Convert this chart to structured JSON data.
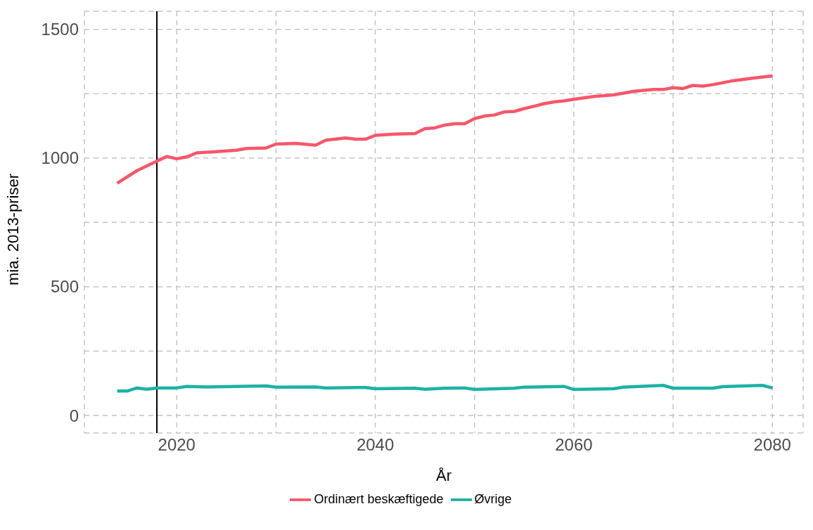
{
  "chart_data": {
    "type": "line",
    "xlabel": "År",
    "ylabel": "mia. 2013-priser",
    "xlim": [
      2010.7,
      2083.1
    ],
    "ylim": [
      -68,
      1570
    ],
    "xticks": [
      2020,
      {
        "value": 2030,
        "label": null
      },
      2040,
      {
        "value": 2050,
        "label": null
      },
      2060,
      {
        "value": 2070,
        "label": null
      },
      2080
    ],
    "yticks": [
      0,
      {
        "value": 250,
        "label": null
      },
      500,
      {
        "value": 750,
        "label": null
      },
      1000,
      {
        "value": 1250,
        "label": null
      },
      1500
    ],
    "grid": true,
    "legend": "bottom",
    "line_style": "solid",
    "marker": "none",
    "ref_lines": [
      {
        "axis": "x",
        "value": 2018,
        "color": "#000000"
      }
    ],
    "series": [
      {
        "name": "Ordinært beskæftigede",
        "color": "#f8566a",
        "x": [
          2014,
          2016,
          2018,
          2019,
          2020,
          2021,
          2022,
          2024,
          2026,
          2027,
          2029,
          2030,
          2032,
          2034,
          2035,
          2037,
          2038,
          2039,
          2040,
          2042,
          2044,
          2045,
          2046,
          2047,
          2048,
          2049,
          2050,
          2051,
          2052,
          2053,
          2054,
          2055,
          2056,
          2057,
          2058,
          2059,
          2060,
          2062,
          2064,
          2066,
          2068,
          2069,
          2070,
          2071,
          2072,
          2073,
          2074,
          2076,
          2078,
          2080
        ],
        "values": [
          902,
          951,
          988,
          1006,
          997,
          1004,
          1020,
          1025,
          1030,
          1037,
          1039,
          1054,
          1057,
          1050,
          1069,
          1078,
          1073,
          1073,
          1088,
          1093,
          1095,
          1114,
          1117,
          1128,
          1133,
          1133,
          1153,
          1163,
          1167,
          1179,
          1181,
          1192,
          1201,
          1211,
          1218,
          1222,
          1228,
          1239,
          1245,
          1259,
          1266,
          1266,
          1273,
          1270,
          1282,
          1279,
          1285,
          1300,
          1310,
          1319
        ]
      },
      {
        "name": "Øvrige",
        "color": "#1db2a5",
        "x": [
          2014,
          2015,
          2016,
          2017,
          2018,
          2020,
          2021,
          2023,
          2026,
          2029,
          2030,
          2034,
          2035,
          2039,
          2040,
          2044,
          2045,
          2047,
          2049,
          2050,
          2054,
          2055,
          2058,
          2059,
          2060,
          2064,
          2065,
          2069,
          2070,
          2074,
          2075,
          2079,
          2080
        ],
        "values": [
          95,
          95,
          107,
          102,
          107,
          107,
          113,
          111,
          113,
          115,
          110,
          111,
          107,
          109,
          104,
          106,
          102,
          106,
          107,
          101,
          106,
          110,
          112,
          113,
          101,
          104,
          110,
          117,
          106,
          106,
          112,
          117,
          107
        ]
      }
    ]
  }
}
